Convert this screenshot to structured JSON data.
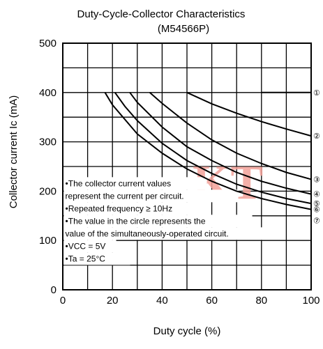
{
  "chart_data": {
    "type": "line",
    "title": "Duty-Cycle-Collector Characteristics",
    "subtitle": "(M54566P)",
    "xlabel": "Duty cycle  (%)",
    "ylabel": "Collector current  Ic (mA)",
    "xlim": [
      0,
      100
    ],
    "ylim": [
      0,
      500
    ],
    "x_ticks": [
      "0",
      "20",
      "40",
      "60",
      "80",
      "100"
    ],
    "y_ticks": [
      "0",
      "100",
      "200",
      "300",
      "400",
      "500"
    ],
    "grid": true,
    "series": [
      {
        "name": "①",
        "x": [
          80,
          100
        ],
        "y": [
          400,
          400
        ]
      },
      {
        "name": "②",
        "x": [
          50,
          60,
          70,
          80,
          90,
          100
        ],
        "y": [
          400,
          377,
          358,
          341,
          326,
          312
        ]
      },
      {
        "name": "③",
        "x": [
          35,
          40,
          50,
          60,
          70,
          80,
          90,
          100
        ],
        "y": [
          400,
          378,
          338,
          304,
          277,
          256,
          238,
          224
        ]
      },
      {
        "name": "④",
        "x": [
          27,
          30,
          40,
          50,
          60,
          70,
          80,
          90,
          100
        ],
        "y": [
          400,
          380,
          330,
          290,
          262,
          238,
          220,
          206,
          194
        ]
      },
      {
        "name": "⑤",
        "x": [
          21,
          25,
          30,
          40,
          50,
          60,
          70,
          80,
          90,
          100
        ],
        "y": [
          400,
          372,
          343,
          297,
          262,
          236,
          214,
          198,
          185,
          175
        ]
      },
      {
        "name": "⑥",
        "x": [
          17,
          20,
          30,
          40,
          50,
          60,
          70,
          80,
          90,
          100
        ],
        "y": [
          400,
          375,
          316,
          277,
          245,
          220,
          200,
          185,
          173,
          163
        ]
      }
    ],
    "extra_labels": [
      "⑦"
    ],
    "notes": [
      "•The collector current values",
      "  represent the current per circuit.",
      "•Repeated frequency ≥ 10Hz",
      "•The value in the circle represents the",
      "  value of the simultaneously-operated circuit.",
      "•VCC = 5V",
      "•Ta = 25°C"
    ],
    "watermark": "KT",
    "colors": {
      "lines": "#000000",
      "watermark": "#f3a29a",
      "background": "#ffffff"
    }
  }
}
